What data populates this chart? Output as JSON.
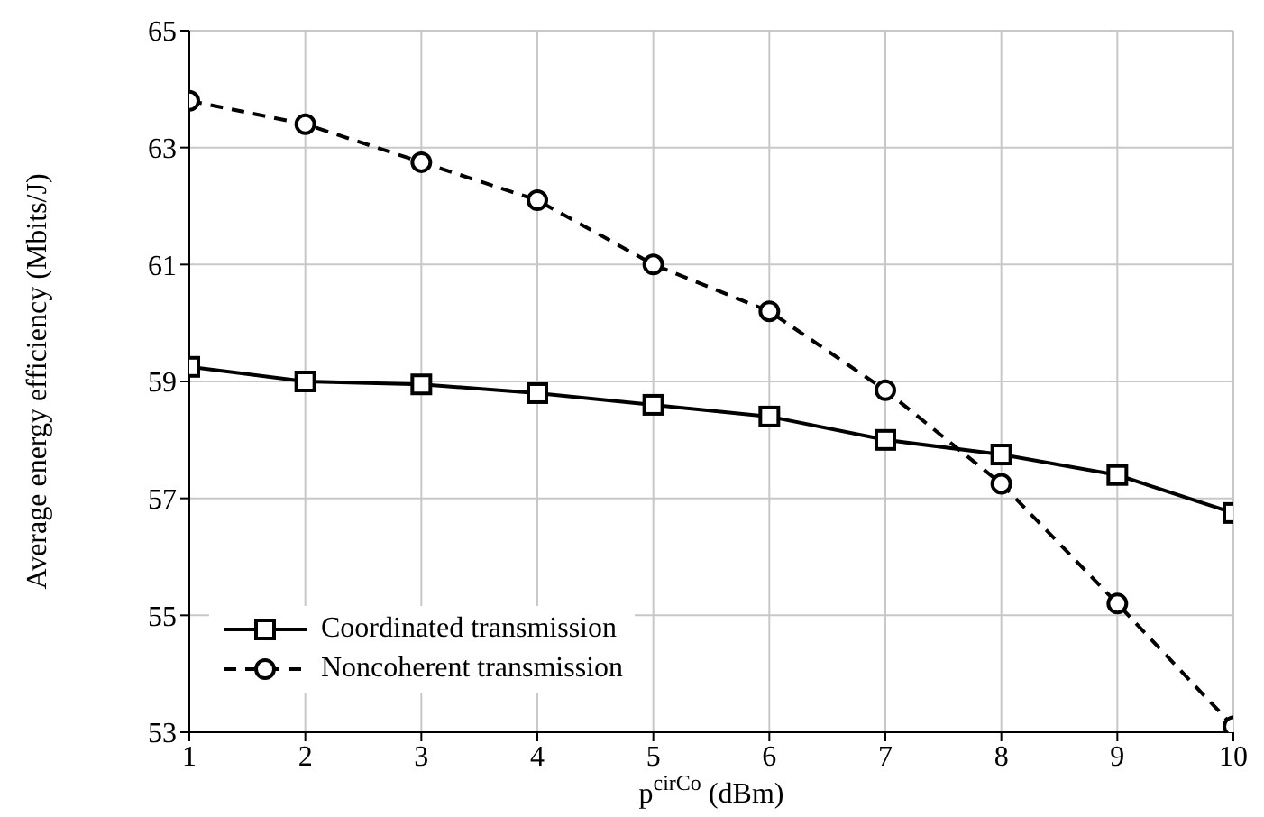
{
  "chart_data": {
    "type": "line",
    "xlabel": "p$^{cirCo}$ (dBm)",
    "ylabel": "Average energy efficiency (Mbits/J)",
    "x": [
      1,
      2,
      3,
      4,
      5,
      6,
      7,
      8,
      9,
      10
    ],
    "series": [
      {
        "name": "Coordinated transmission",
        "color": "#000000",
        "marker": "square",
        "line_style": "solid",
        "values": [
          59.25,
          59.0,
          58.95,
          58.8,
          58.6,
          58.4,
          58.0,
          57.75,
          57.4,
          56.75
        ]
      },
      {
        "name": "Noncoherent transmission",
        "color": "#000000",
        "marker": "circle",
        "line_style": "dashed",
        "values": [
          63.8,
          63.4,
          62.75,
          62.1,
          61.0,
          60.2,
          58.85,
          57.25,
          55.2,
          53.1
        ]
      }
    ],
    "xlim": [
      1,
      10
    ],
    "xticks": [
      1,
      2,
      3,
      4,
      5,
      6,
      7,
      8,
      9,
      10
    ],
    "ylim": [
      53,
      65
    ],
    "yticks": [
      53,
      55,
      57,
      59,
      61,
      63,
      65
    ],
    "grid": true,
    "legend": "bottom left"
  }
}
